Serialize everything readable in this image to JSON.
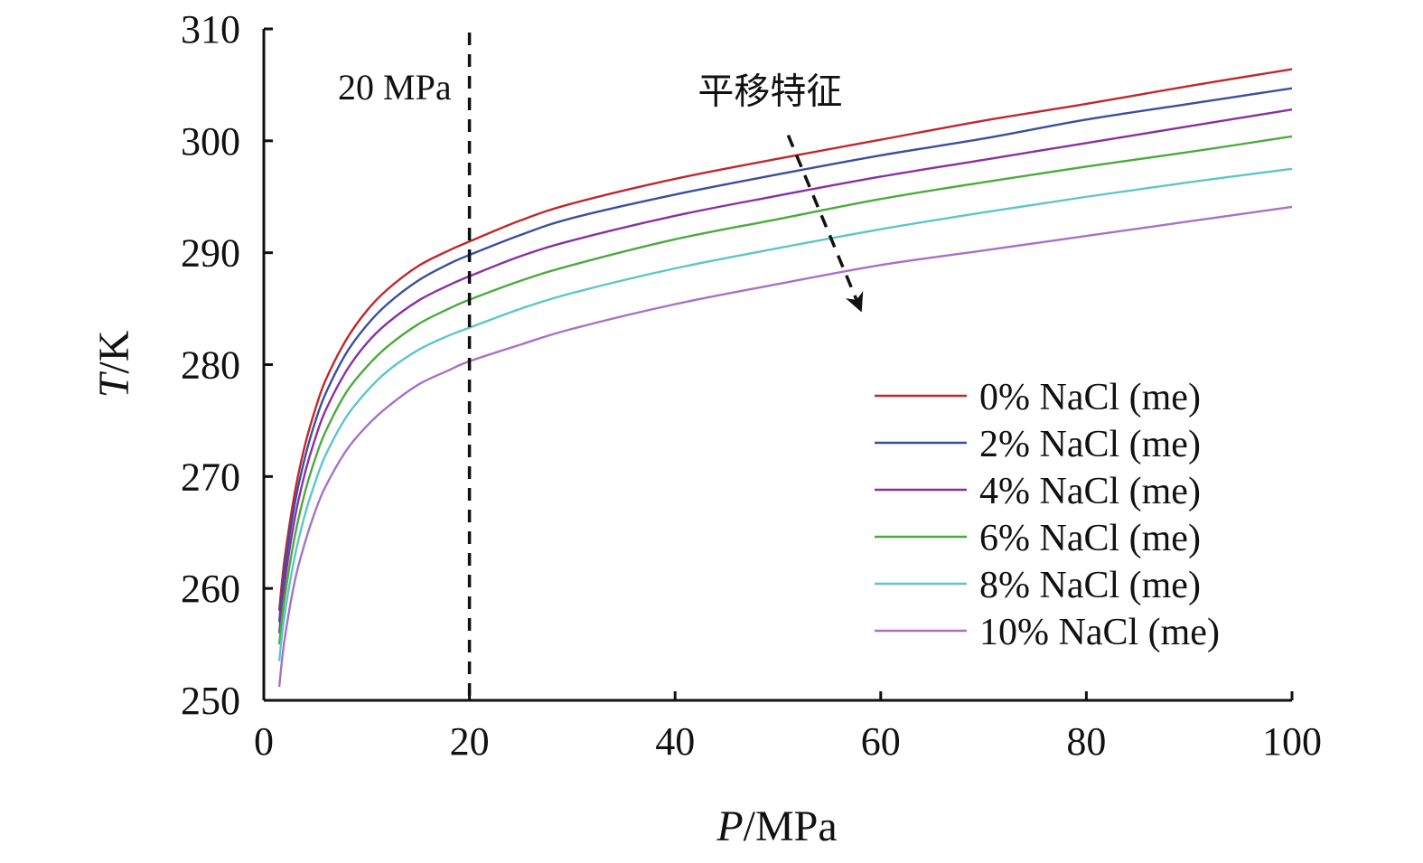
{
  "chart_data": {
    "type": "line",
    "xlabel_italic": "P",
    "xlabel_rest": "/MPa",
    "ylabel_italic": "T",
    "ylabel_rest": "/K",
    "xlim": [
      0,
      100
    ],
    "ylim": [
      250,
      310
    ],
    "xticks": [
      0,
      20,
      40,
      60,
      80,
      100
    ],
    "yticks": [
      250,
      260,
      270,
      280,
      290,
      300,
      310
    ],
    "grid": false,
    "legend_position": "lower-right",
    "x": [
      1.5,
      2,
      3,
      4,
      5,
      6,
      8,
      10,
      12,
      15,
      18,
      20,
      25,
      30,
      40,
      50,
      60,
      70,
      80,
      90,
      100
    ],
    "series": [
      {
        "name": "0% NaCl (me)",
        "color": "#c0282d",
        "values": [
          258.0,
          262.5,
          268.5,
          272.8,
          276.0,
          278.6,
          282.2,
          284.8,
          286.7,
          288.8,
          290.2,
          291.0,
          292.9,
          294.4,
          296.6,
          298.4,
          300.1,
          301.8,
          303.3,
          304.9,
          306.4
        ]
      },
      {
        "name": "2% NaCl (me)",
        "color": "#3a4fa0",
        "values": [
          257.0,
          261.5,
          267.5,
          271.7,
          274.9,
          277.4,
          281.0,
          283.5,
          285.4,
          287.5,
          289.0,
          289.8,
          291.6,
          293.1,
          295.2,
          297.0,
          298.7,
          300.2,
          301.9,
          303.3,
          304.7
        ]
      },
      {
        "name": "4% NaCl (me)",
        "color": "#8b2fa3",
        "values": [
          256.0,
          260.3,
          266.2,
          270.3,
          273.4,
          275.9,
          279.4,
          281.9,
          283.7,
          285.7,
          287.1,
          287.9,
          289.7,
          291.1,
          293.3,
          295.1,
          296.8,
          298.3,
          299.8,
          301.3,
          302.8
        ]
      },
      {
        "name": "6% NaCl (me)",
        "color": "#4aab3c",
        "values": [
          255.0,
          259.0,
          264.6,
          268.6,
          271.6,
          274.0,
          277.5,
          279.8,
          281.6,
          283.6,
          285.0,
          285.8,
          287.5,
          288.9,
          291.2,
          293.0,
          294.8,
          296.3,
          297.7,
          299.0,
          300.4
        ]
      },
      {
        "name": "8% NaCl (me)",
        "color": "#5cc6c8",
        "values": [
          253.5,
          257.5,
          262.8,
          266.6,
          269.5,
          271.9,
          275.3,
          277.6,
          279.4,
          281.3,
          282.6,
          283.3,
          285.0,
          286.4,
          288.6,
          290.4,
          292.1,
          293.6,
          295.0,
          296.3,
          297.5
        ]
      },
      {
        "name": "10% NaCl (me)",
        "color": "#a772c6",
        "values": [
          251.2,
          255.3,
          260.6,
          264.1,
          266.9,
          269.1,
          272.3,
          274.5,
          276.2,
          278.2,
          279.5,
          280.3,
          281.8,
          283.2,
          285.4,
          287.2,
          288.9,
          290.2,
          291.5,
          292.8,
          294.1
        ]
      }
    ],
    "vline": {
      "x": 20,
      "label": "20 MPa"
    },
    "arrow_annotation": {
      "label": "平移特征",
      "from": [
        51,
        300.5
      ],
      "to": [
        58,
        285
      ]
    }
  }
}
